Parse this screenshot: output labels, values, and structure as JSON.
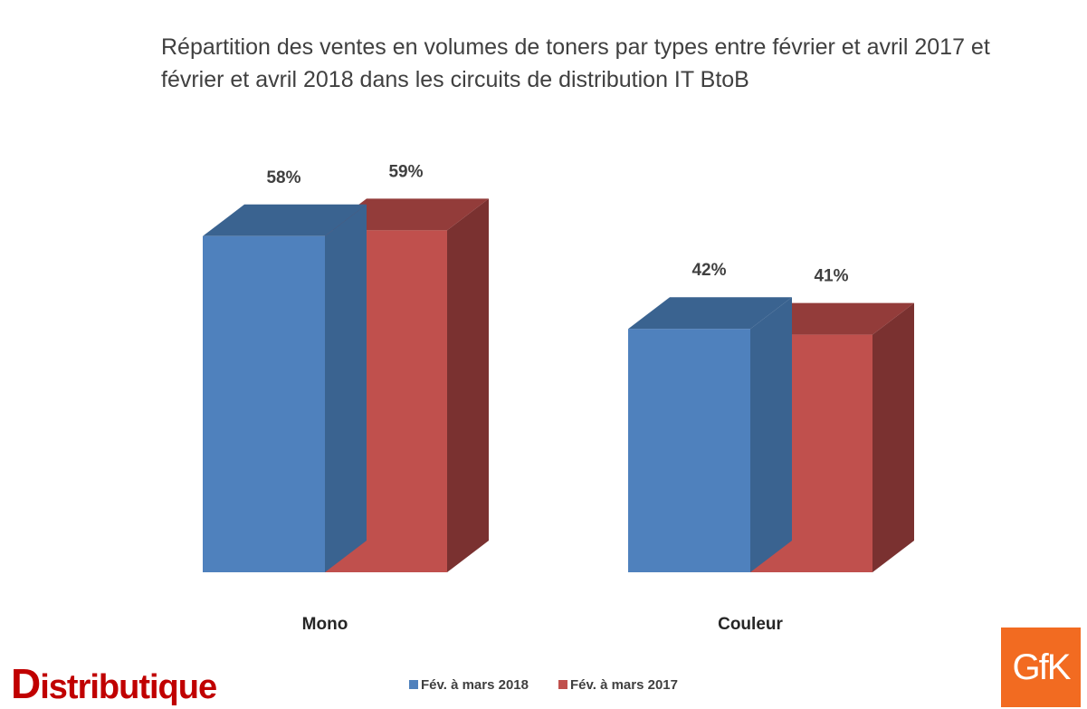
{
  "chart_data": {
    "type": "bar",
    "title": "Répartition des ventes en volumes de toners par types entre février et avril 2017 et février et avril 2018 dans les circuits de distribution IT BtoB",
    "categories": [
      "Mono",
      "Couleur"
    ],
    "series": [
      {
        "name": "Fév. à mars 2018",
        "values": [
          58,
          42
        ],
        "labels": [
          "58%",
          "42%"
        ],
        "color": "#4f81bd",
        "top_color": "#3a6390",
        "side_color": "#3a6390"
      },
      {
        "name": "Fév. à mars 2017",
        "values": [
          59,
          41
        ],
        "labels": [
          "59%",
          "41%"
        ],
        "color": "#c0504d",
        "top_color": "#933c3a",
        "side_color": "#7a3130"
      }
    ],
    "ylim": [
      0,
      100
    ],
    "grid": false,
    "legend": "bottom-center",
    "unit": "%"
  },
  "branding": {
    "left_logo_first": "D",
    "left_logo_rest": "istributique",
    "right_logo": "GfK",
    "left_logo_color": "#c00000",
    "right_logo_color": "#f26b21"
  }
}
